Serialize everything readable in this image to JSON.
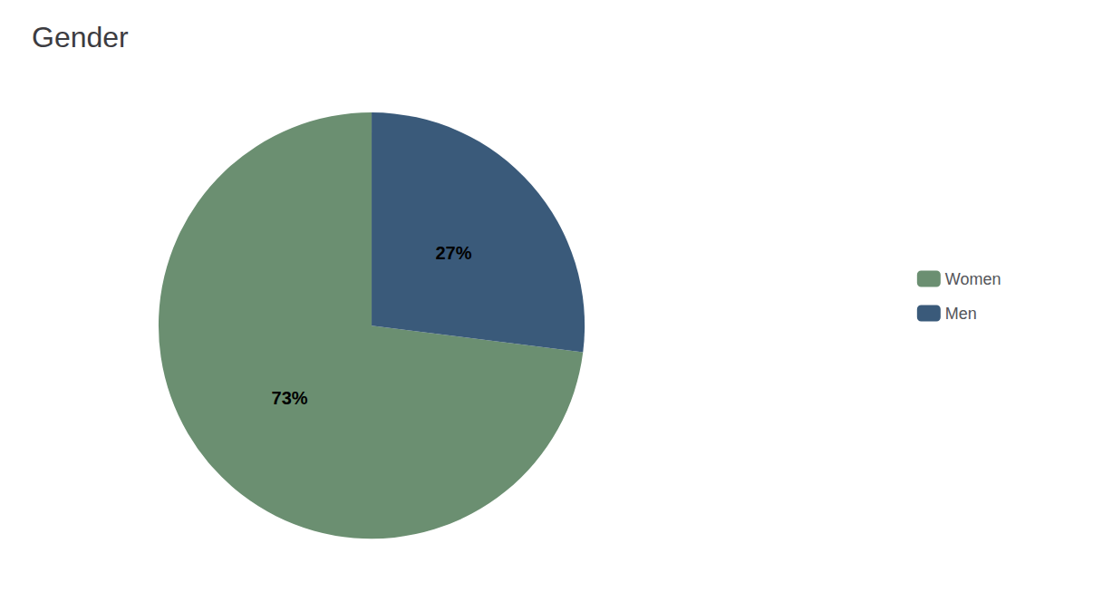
{
  "chart_data": {
    "type": "pie",
    "title": "Gender",
    "categories": [
      "Women",
      "Men"
    ],
    "values": [
      73,
      27
    ],
    "value_labels": [
      "73%",
      "27%"
    ],
    "colors": [
      "#6b8f71",
      "#3a5a7a"
    ],
    "data_labels": true,
    "legend": "right"
  }
}
